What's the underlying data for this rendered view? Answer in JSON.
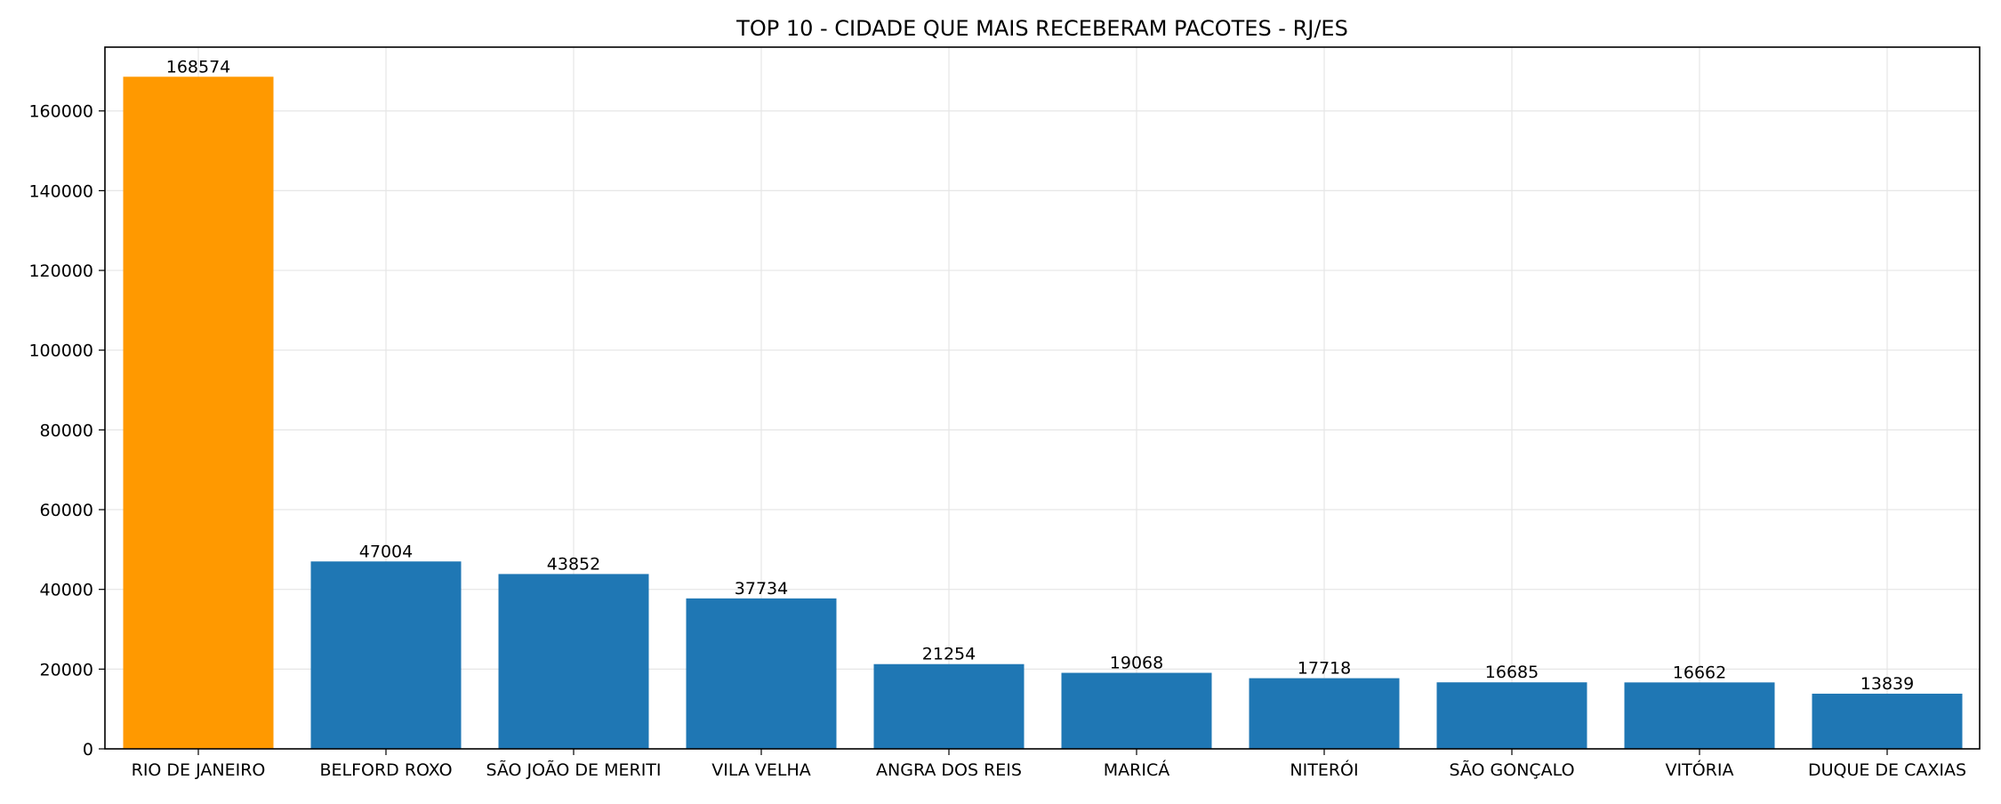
{
  "chart_data": {
    "type": "bar",
    "title": "TOP 10 - CIDADE QUE MAIS RECEBERAM PACOTES - RJ/ES",
    "xlabel": "",
    "ylabel": "",
    "categories": [
      "RIO DE JANEIRO",
      "BELFORD ROXO",
      "SÃO JOÃO DE MERITI",
      "VILA VELHA",
      "ANGRA DOS REIS",
      "MARICÁ",
      "NITERÓI",
      "SÃO GONÇALO",
      "VITÓRIA",
      "DUQUE DE CAXIAS"
    ],
    "values": [
      168574,
      47004,
      43852,
      37734,
      21254,
      19068,
      17718,
      16685,
      16662,
      13839
    ],
    "data_labels": [
      "168574",
      "47004",
      "43852",
      "37734",
      "21254",
      "19068",
      "17718",
      "16685",
      "16662",
      "13839"
    ],
    "bar_colors": [
      "#ff9900",
      "#1f77b4",
      "#1f77b4",
      "#1f77b4",
      "#1f77b4",
      "#1f77b4",
      "#1f77b4",
      "#1f77b4",
      "#1f77b4",
      "#1f77b4"
    ],
    "ylim": [
      0,
      176000
    ],
    "yticks": [
      0,
      20000,
      40000,
      60000,
      80000,
      100000,
      120000,
      140000,
      160000
    ],
    "ytick_labels": [
      "0",
      "20000",
      "40000",
      "60000",
      "80000",
      "100000",
      "120000",
      "140000",
      "160000"
    ],
    "grid": true,
    "legend": false
  }
}
